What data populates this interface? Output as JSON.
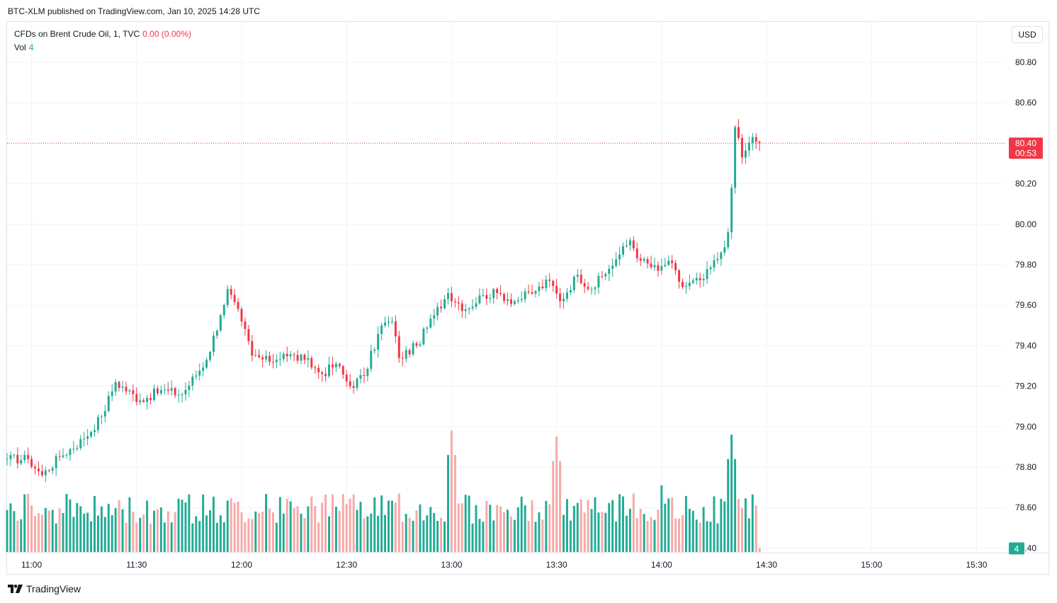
{
  "header": {
    "published": "BTC-XLM published on TradingView.com, Jan 10, 2025 14:28 UTC"
  },
  "legend": {
    "symbol": "CFDs on Brent Crude Oil, 1, TVC",
    "change": "0.00 (0.00%)",
    "vol_label": "Vol",
    "vol_value": "4"
  },
  "currency_button": "USD",
  "footer": {
    "brand": "TradingView"
  },
  "colors": {
    "up": "#22ab94",
    "down": "#f23645",
    "vol_up": "#22ab94",
    "vol_down": "#f7a9a7",
    "grid": "#f0f3fa"
  },
  "chart_data": {
    "type": "candlestick",
    "x_ticks": [
      "11:00",
      "11:30",
      "12:00",
      "12:30",
      "13:00",
      "13:30",
      "14:00",
      "14:30",
      "15:00",
      "15:30"
    ],
    "y_ticks": [
      "80.80",
      "80.60",
      "80.20",
      "80.00",
      "79.80",
      "79.60",
      "79.40",
      "79.20",
      "79.00",
      "78.80",
      "78.60",
      "78.40"
    ],
    "ylim": [
      78.38,
      80.88
    ],
    "x_start": "10:53",
    "x_end": "15:38",
    "last_price": {
      "value": "80.40",
      "countdown": "00:53"
    },
    "last_volume": "4",
    "close_path": [
      [
        "10:53",
        78.84
      ],
      [
        "10:59",
        78.84
      ],
      [
        "11:03",
        78.76
      ],
      [
        "11:08",
        78.85
      ],
      [
        "11:15",
        78.94
      ],
      [
        "11:20",
        79.05
      ],
      [
        "11:24",
        79.22
      ],
      [
        "11:31",
        79.13
      ],
      [
        "11:37",
        79.18
      ],
      [
        "11:43",
        79.16
      ],
      [
        "11:50",
        79.33
      ],
      [
        "11:54",
        79.55
      ],
      [
        "11:56",
        79.68
      ],
      [
        "12:00",
        79.52
      ],
      [
        "12:03",
        79.35
      ],
      [
        "12:08",
        79.32
      ],
      [
        "12:12",
        79.36
      ],
      [
        "12:18",
        79.33
      ],
      [
        "12:23",
        79.26
      ],
      [
        "12:27",
        79.31
      ],
      [
        "12:31",
        79.2
      ],
      [
        "12:35",
        79.25
      ],
      [
        "12:40",
        79.5
      ],
      [
        "12:43",
        79.52
      ],
      [
        "12:45",
        79.34
      ],
      [
        "12:50",
        79.4
      ],
      [
        "12:55",
        79.55
      ],
      [
        "12:59",
        79.66
      ],
      [
        "13:04",
        79.58
      ],
      [
        "13:09",
        79.65
      ],
      [
        "13:13",
        79.66
      ],
      [
        "13:18",
        79.62
      ],
      [
        "13:24",
        79.67
      ],
      [
        "13:28",
        79.72
      ],
      [
        "13:31",
        79.62
      ],
      [
        "13:36",
        79.75
      ],
      [
        "13:40",
        79.68
      ],
      [
        "13:45",
        79.78
      ],
      [
        "13:48",
        79.85
      ],
      [
        "13:51",
        79.92
      ],
      [
        "13:54",
        79.82
      ],
      [
        "13:59",
        79.77
      ],
      [
        "14:02",
        79.82
      ],
      [
        "14:06",
        79.69
      ],
      [
        "14:12",
        79.73
      ],
      [
        "14:17",
        79.86
      ],
      [
        "14:19",
        79.96
      ],
      [
        "14:20",
        80.18
      ],
      [
        "14:21",
        80.48
      ],
      [
        "14:23",
        80.33
      ],
      [
        "14:26",
        80.43
      ],
      [
        "14:28",
        80.4
      ]
    ],
    "volume_peaks": [
      [
        "13:00",
        78.98
      ],
      [
        "13:30",
        78.95
      ],
      [
        "14:00",
        78.71
      ],
      [
        "14:20",
        78.96
      ]
    ]
  }
}
